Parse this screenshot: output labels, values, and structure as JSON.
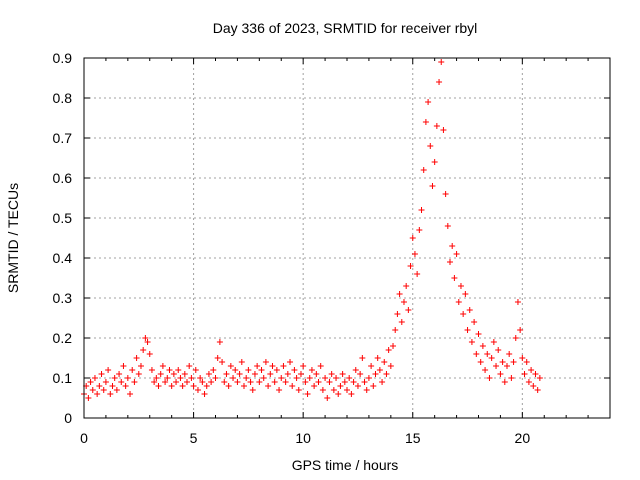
{
  "chart_data": {
    "type": "scatter",
    "title": "Day 336 of 2023, SRMTID for receiver rbyl",
    "xlabel": "GPS time / hours",
    "ylabel": "SRMTID / TECUs",
    "xlim": [
      0,
      24
    ],
    "ylim": [
      0,
      0.9
    ],
    "xticks": [
      0,
      5,
      10,
      15,
      20
    ],
    "yticks": [
      0,
      0.1,
      0.2,
      0.3,
      0.4,
      0.5,
      0.6,
      0.7,
      0.8,
      0.9
    ],
    "grid": true,
    "marker": "+",
    "color": "#ff0000",
    "series": [
      {
        "name": "SRMTID",
        "points": [
          [
            0.0,
            0.06
          ],
          [
            0.1,
            0.08
          ],
          [
            0.2,
            0.05
          ],
          [
            0.3,
            0.09
          ],
          [
            0.4,
            0.07
          ],
          [
            0.5,
            0.1
          ],
          [
            0.6,
            0.06
          ],
          [
            0.7,
            0.08
          ],
          [
            0.8,
            0.11
          ],
          [
            0.9,
            0.07
          ],
          [
            1.0,
            0.09
          ],
          [
            1.1,
            0.12
          ],
          [
            1.2,
            0.06
          ],
          [
            1.3,
            0.08
          ],
          [
            1.4,
            0.1
          ],
          [
            1.5,
            0.07
          ],
          [
            1.6,
            0.11
          ],
          [
            1.7,
            0.09
          ],
          [
            1.8,
            0.13
          ],
          [
            1.9,
            0.08
          ],
          [
            2.0,
            0.1
          ],
          [
            2.1,
            0.06
          ],
          [
            2.2,
            0.12
          ],
          [
            2.3,
            0.09
          ],
          [
            2.4,
            0.15
          ],
          [
            2.5,
            0.11
          ],
          [
            2.6,
            0.13
          ],
          [
            2.7,
            0.17
          ],
          [
            2.8,
            0.2
          ],
          [
            2.9,
            0.19
          ],
          [
            3.0,
            0.16
          ],
          [
            3.1,
            0.12
          ],
          [
            3.2,
            0.09
          ],
          [
            3.3,
            0.1
          ],
          [
            3.4,
            0.08
          ],
          [
            3.5,
            0.11
          ],
          [
            3.6,
            0.13
          ],
          [
            3.7,
            0.09
          ],
          [
            3.8,
            0.1
          ],
          [
            3.9,
            0.12
          ],
          [
            4.0,
            0.08
          ],
          [
            4.1,
            0.11
          ],
          [
            4.2,
            0.09
          ],
          [
            4.3,
            0.12
          ],
          [
            4.4,
            0.1
          ],
          [
            4.5,
            0.08
          ],
          [
            4.6,
            0.11
          ],
          [
            4.7,
            0.09
          ],
          [
            4.8,
            0.13
          ],
          [
            4.9,
            0.1
          ],
          [
            5.0,
            0.08
          ],
          [
            5.1,
            0.12
          ],
          [
            5.2,
            0.07
          ],
          [
            5.3,
            0.1
          ],
          [
            5.4,
            0.09
          ],
          [
            5.5,
            0.06
          ],
          [
            5.6,
            0.08
          ],
          [
            5.7,
            0.11
          ],
          [
            5.8,
            0.09
          ],
          [
            5.9,
            0.12
          ],
          [
            6.0,
            0.1
          ],
          [
            6.1,
            0.15
          ],
          [
            6.2,
            0.19
          ],
          [
            6.3,
            0.14
          ],
          [
            6.4,
            0.09
          ],
          [
            6.5,
            0.11
          ],
          [
            6.6,
            0.08
          ],
          [
            6.7,
            0.13
          ],
          [
            6.8,
            0.1
          ],
          [
            6.9,
            0.12
          ],
          [
            7.0,
            0.09
          ],
          [
            7.1,
            0.11
          ],
          [
            7.2,
            0.14
          ],
          [
            7.3,
            0.08
          ],
          [
            7.4,
            0.1
          ],
          [
            7.5,
            0.12
          ],
          [
            7.6,
            0.09
          ],
          [
            7.7,
            0.07
          ],
          [
            7.8,
            0.11
          ],
          [
            7.9,
            0.13
          ],
          [
            8.0,
            0.09
          ],
          [
            8.1,
            0.12
          ],
          [
            8.2,
            0.1
          ],
          [
            8.3,
            0.14
          ],
          [
            8.4,
            0.08
          ],
          [
            8.5,
            0.11
          ],
          [
            8.6,
            0.13
          ],
          [
            8.7,
            0.09
          ],
          [
            8.8,
            0.12
          ],
          [
            8.9,
            0.07
          ],
          [
            9.0,
            0.1
          ],
          [
            9.1,
            0.13
          ],
          [
            9.2,
            0.09
          ],
          [
            9.3,
            0.11
          ],
          [
            9.4,
            0.14
          ],
          [
            9.5,
            0.08
          ],
          [
            9.6,
            0.12
          ],
          [
            9.7,
            0.1
          ],
          [
            9.8,
            0.07
          ],
          [
            9.9,
            0.11
          ],
          [
            10.0,
            0.13
          ],
          [
            10.1,
            0.09
          ],
          [
            10.2,
            0.06
          ],
          [
            10.3,
            0.1
          ],
          [
            10.4,
            0.12
          ],
          [
            10.5,
            0.08
          ],
          [
            10.6,
            0.11
          ],
          [
            10.7,
            0.09
          ],
          [
            10.8,
            0.13
          ],
          [
            10.9,
            0.07
          ],
          [
            11.0,
            0.1
          ],
          [
            11.1,
            0.05
          ],
          [
            11.2,
            0.09
          ],
          [
            11.3,
            0.11
          ],
          [
            11.4,
            0.07
          ],
          [
            11.5,
            0.1
          ],
          [
            11.6,
            0.06
          ],
          [
            11.7,
            0.08
          ],
          [
            11.8,
            0.11
          ],
          [
            11.9,
            0.09
          ],
          [
            12.0,
            0.07
          ],
          [
            12.1,
            0.1
          ],
          [
            12.2,
            0.06
          ],
          [
            12.3,
            0.09
          ],
          [
            12.4,
            0.12
          ],
          [
            12.5,
            0.08
          ],
          [
            12.6,
            0.11
          ],
          [
            12.7,
            0.15
          ],
          [
            12.8,
            0.09
          ],
          [
            12.9,
            0.07
          ],
          [
            13.0,
            0.1
          ],
          [
            13.1,
            0.13
          ],
          [
            13.2,
            0.08
          ],
          [
            13.3,
            0.11
          ],
          [
            13.4,
            0.15
          ],
          [
            13.5,
            0.12
          ],
          [
            13.6,
            0.09
          ],
          [
            13.7,
            0.14
          ],
          [
            13.8,
            0.11
          ],
          [
            13.9,
            0.17
          ],
          [
            14.0,
            0.13
          ],
          [
            14.1,
            0.18
          ],
          [
            14.2,
            0.22
          ],
          [
            14.3,
            0.26
          ],
          [
            14.4,
            0.31
          ],
          [
            14.5,
            0.24
          ],
          [
            14.6,
            0.29
          ],
          [
            14.7,
            0.33
          ],
          [
            14.8,
            0.27
          ],
          [
            14.9,
            0.38
          ],
          [
            15.0,
            0.45
          ],
          [
            15.1,
            0.41
          ],
          [
            15.2,
            0.36
          ],
          [
            15.3,
            0.47
          ],
          [
            15.4,
            0.52
          ],
          [
            15.5,
            0.62
          ],
          [
            15.6,
            0.74
          ],
          [
            15.7,
            0.79
          ],
          [
            15.8,
            0.68
          ],
          [
            15.9,
            0.58
          ],
          [
            16.0,
            0.64
          ],
          [
            16.1,
            0.73
          ],
          [
            16.2,
            0.84
          ],
          [
            16.3,
            0.89
          ],
          [
            16.4,
            0.72
          ],
          [
            16.5,
            0.56
          ],
          [
            16.6,
            0.48
          ],
          [
            16.7,
            0.39
          ],
          [
            16.8,
            0.43
          ],
          [
            16.9,
            0.35
          ],
          [
            17.0,
            0.41
          ],
          [
            17.1,
            0.29
          ],
          [
            17.2,
            0.33
          ],
          [
            17.3,
            0.26
          ],
          [
            17.4,
            0.31
          ],
          [
            17.5,
            0.22
          ],
          [
            17.6,
            0.27
          ],
          [
            17.7,
            0.19
          ],
          [
            17.8,
            0.24
          ],
          [
            17.9,
            0.16
          ],
          [
            18.0,
            0.21
          ],
          [
            18.1,
            0.14
          ],
          [
            18.2,
            0.18
          ],
          [
            18.3,
            0.12
          ],
          [
            18.4,
            0.16
          ],
          [
            18.5,
            0.1
          ],
          [
            18.6,
            0.15
          ],
          [
            18.7,
            0.19
          ],
          [
            18.8,
            0.13
          ],
          [
            18.9,
            0.17
          ],
          [
            19.0,
            0.11
          ],
          [
            19.1,
            0.14
          ],
          [
            19.2,
            0.09
          ],
          [
            19.3,
            0.13
          ],
          [
            19.4,
            0.16
          ],
          [
            19.5,
            0.1
          ],
          [
            19.6,
            0.14
          ],
          [
            19.7,
            0.2
          ],
          [
            19.8,
            0.29
          ],
          [
            19.9,
            0.22
          ],
          [
            20.0,
            0.15
          ],
          [
            20.1,
            0.11
          ],
          [
            20.2,
            0.14
          ],
          [
            20.3,
            0.09
          ],
          [
            20.4,
            0.12
          ],
          [
            20.5,
            0.08
          ],
          [
            20.6,
            0.11
          ],
          [
            20.7,
            0.07
          ],
          [
            20.8,
            0.1
          ]
        ]
      }
    ]
  }
}
